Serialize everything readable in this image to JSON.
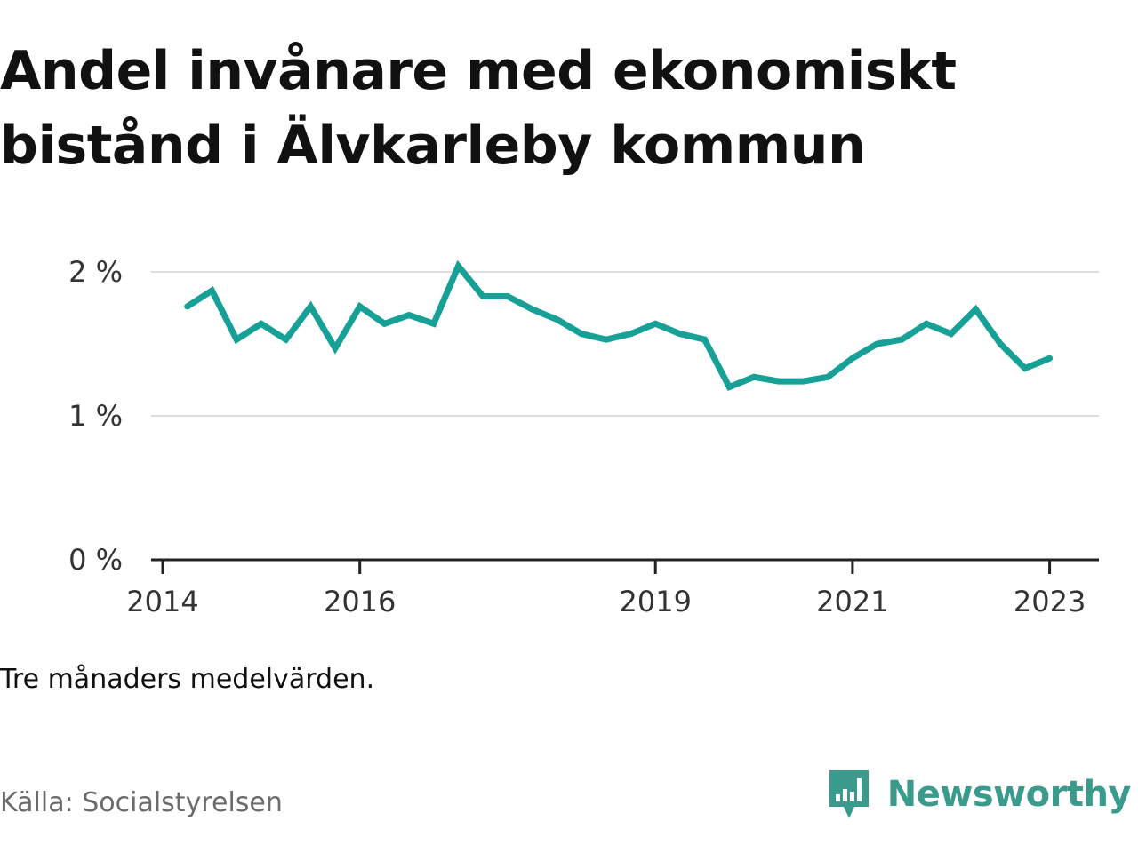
{
  "title": "Andel invånare med ekonomiskt bistånd i Älvkarleby kommun",
  "note": "Tre månaders medelvärden.",
  "source": "Källa: Socialstyrelsen",
  "brand": {
    "name": "Newsworthy",
    "icon": "newsworthy-bar-chart-icon",
    "color": "#3a9a8c"
  },
  "colors": {
    "line": "#16a096",
    "grid": "#dddddd",
    "axis": "#222222",
    "text": "#111111",
    "muted": "#6b6b6b"
  },
  "chart_data": {
    "type": "line",
    "title": "Andel invånare med ekonomiskt bistånd i Älvkarleby kommun",
    "xlabel": "",
    "ylabel": "",
    "x_range": [
      "2014-01",
      "2023-07"
    ],
    "ylim": [
      0,
      2.1
    ],
    "y_ticks": [
      {
        "value": 0,
        "label": "0 %"
      },
      {
        "value": 1,
        "label": "1 %"
      },
      {
        "value": 2,
        "label": "2 %"
      }
    ],
    "x_ticks": [
      {
        "date": "2014-01",
        "label": "2014"
      },
      {
        "date": "2016-01",
        "label": "2016"
      },
      {
        "date": "2019-01",
        "label": "2019"
      },
      {
        "date": "2021-01",
        "label": "2021"
      },
      {
        "date": "2023-01",
        "label": "2023"
      }
    ],
    "grid": "horizontal",
    "legend": "none",
    "series": [
      {
        "values": [
          {
            "date": "2014-04",
            "value": 1.76
          },
          {
            "date": "2014-07",
            "value": 1.87
          },
          {
            "date": "2014-10",
            "value": 1.53
          },
          {
            "date": "2015-01",
            "value": 1.64
          },
          {
            "date": "2015-04",
            "value": 1.53
          },
          {
            "date": "2015-07",
            "value": 1.76
          },
          {
            "date": "2015-10",
            "value": 1.47
          },
          {
            "date": "2016-01",
            "value": 1.76
          },
          {
            "date": "2016-04",
            "value": 1.64
          },
          {
            "date": "2016-07",
            "value": 1.7
          },
          {
            "date": "2016-10",
            "value": 1.64
          },
          {
            "date": "2017-01",
            "value": 2.04
          },
          {
            "date": "2017-04",
            "value": 1.83
          },
          {
            "date": "2017-07",
            "value": 1.83
          },
          {
            "date": "2017-10",
            "value": 1.74
          },
          {
            "date": "2018-01",
            "value": 1.67
          },
          {
            "date": "2018-04",
            "value": 1.57
          },
          {
            "date": "2018-07",
            "value": 1.53
          },
          {
            "date": "2018-10",
            "value": 1.57
          },
          {
            "date": "2019-01",
            "value": 1.64
          },
          {
            "date": "2019-04",
            "value": 1.57
          },
          {
            "date": "2019-07",
            "value": 1.53
          },
          {
            "date": "2019-10",
            "value": 1.2
          },
          {
            "date": "2020-01",
            "value": 1.27
          },
          {
            "date": "2020-04",
            "value": 1.24
          },
          {
            "date": "2020-07",
            "value": 1.24
          },
          {
            "date": "2020-10",
            "value": 1.27
          },
          {
            "date": "2021-01",
            "value": 1.4
          },
          {
            "date": "2021-04",
            "value": 1.5
          },
          {
            "date": "2021-07",
            "value": 1.53
          },
          {
            "date": "2021-10",
            "value": 1.64
          },
          {
            "date": "2022-01",
            "value": 1.57
          },
          {
            "date": "2022-04",
            "value": 1.74
          },
          {
            "date": "2022-07",
            "value": 1.5
          },
          {
            "date": "2022-10",
            "value": 1.33
          },
          {
            "date": "2023-01",
            "value": 1.4
          }
        ]
      }
    ]
  }
}
